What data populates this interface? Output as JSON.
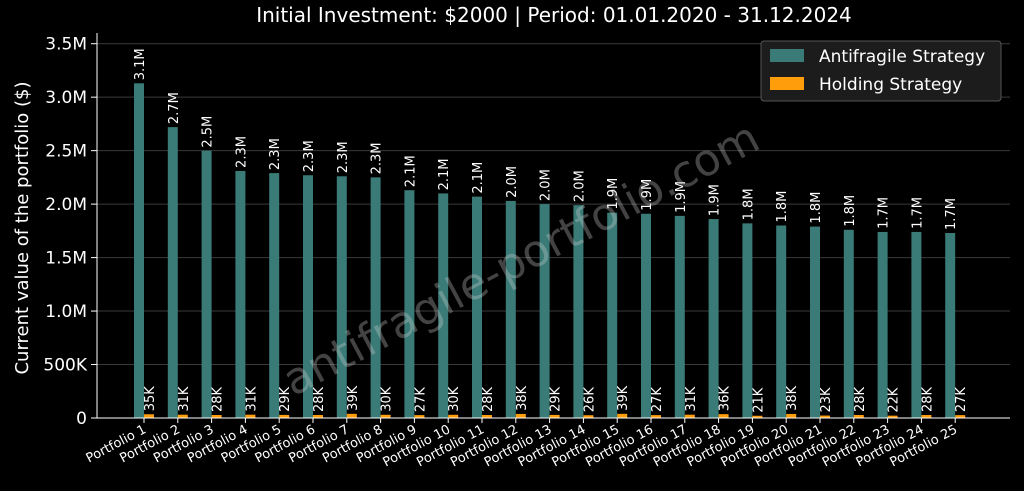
{
  "chart_data": {
    "type": "bar",
    "title": "Initial Investment: $2000 | Period: 01.01.2020 - 31.12.2024",
    "xlabel": "",
    "ylabel": "Current value of the portfolio ($)",
    "ylim": [
      0,
      3600000
    ],
    "yticks": [
      0,
      500000,
      1000000,
      1500000,
      2000000,
      2500000,
      3000000,
      3500000
    ],
    "ytick_labels": [
      "0",
      "500K",
      "1.0M",
      "1.5M",
      "2.0M",
      "2.5M",
      "3.0M",
      "3.5M"
    ],
    "grid": true,
    "legend_position": "top-right",
    "watermark": "antifragile-portfolio.com",
    "categories": [
      "Portfolio 1",
      "Portfolio 2",
      "Portfolio 3",
      "Portfolio 4",
      "Portfolio 5",
      "Portfolio 6",
      "Portfolio 7",
      "Portfolio 8",
      "Portfolio 9",
      "Portfolio 10",
      "Portfolio 11",
      "Portfolio 12",
      "Portfolio 13",
      "Portfolio 14",
      "Portfolio 15",
      "Portfolio 16",
      "Portfolio 17",
      "Portfolio 18",
      "Portfolio 19",
      "Portfolio 20",
      "Portfolio 21",
      "Portfolio 22",
      "Portfolio 23",
      "Portfolio 24",
      "Portfolio 25"
    ],
    "series": [
      {
        "name": "Antifragile Strategy",
        "color": "#3a7b77",
        "values": [
          3130000,
          2720000,
          2500000,
          2310000,
          2290000,
          2270000,
          2260000,
          2250000,
          2130000,
          2100000,
          2070000,
          2030000,
          2000000,
          1990000,
          1920000,
          1910000,
          1890000,
          1860000,
          1820000,
          1800000,
          1790000,
          1760000,
          1740000,
          1740000,
          1730000
        ],
        "labels": [
          "3.1M",
          "2.7M",
          "2.5M",
          "2.3M",
          "2.3M",
          "2.3M",
          "2.3M",
          "2.3M",
          "2.1M",
          "2.1M",
          "2.1M",
          "2.0M",
          "2.0M",
          "2.0M",
          "1.9M",
          "1.9M",
          "1.9M",
          "1.9M",
          "1.8M",
          "1.8M",
          "1.8M",
          "1.8M",
          "1.7M",
          "1.7M",
          "1.7M"
        ]
      },
      {
        "name": "Holding Strategy",
        "color": "#ff9d0a",
        "values": [
          35000,
          31000,
          28000,
          31000,
          29000,
          28000,
          39000,
          30000,
          27000,
          30000,
          28000,
          38000,
          29000,
          26000,
          39000,
          27000,
          31000,
          36000,
          21000,
          38000,
          23000,
          28000,
          22000,
          28000,
          27000
        ],
        "labels": [
          "35K",
          "31K",
          "28K",
          "31K",
          "29K",
          "28K",
          "39K",
          "30K",
          "27K",
          "30K",
          "28K",
          "38K",
          "29K",
          "26K",
          "39K",
          "27K",
          "31K",
          "36K",
          "21K",
          "38K",
          "23K",
          "28K",
          "22K",
          "28K",
          "27K"
        ]
      }
    ]
  }
}
